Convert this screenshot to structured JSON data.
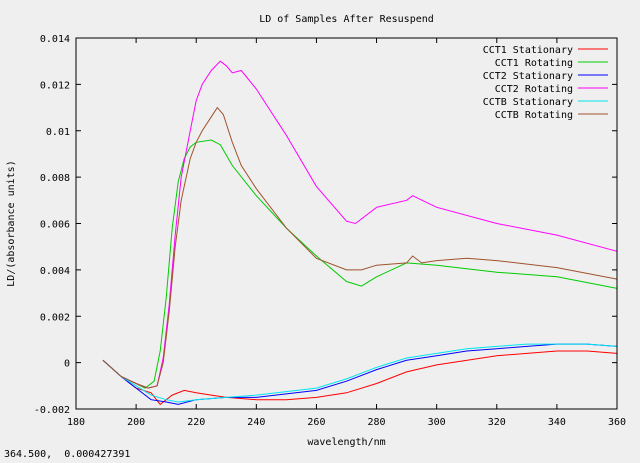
{
  "status_text": "364.500,  0.000427391",
  "chart_data": {
    "type": "line",
    "title": "LD of Samples After Resuspend",
    "xlabel": "wavelength/nm",
    "ylabel": "LD/(absorbance units)",
    "xlim": [
      180,
      360
    ],
    "ylim": [
      -0.002,
      0.014
    ],
    "xticks": [
      180,
      200,
      220,
      240,
      260,
      280,
      300,
      320,
      340,
      360
    ],
    "xtick_labels": [
      "180",
      "200",
      "220",
      "240",
      "260",
      "280",
      "300",
      "320",
      "340",
      "360"
    ],
    "yticks": [
      -0.002,
      0,
      0.002,
      0.004,
      0.006,
      0.008,
      0.01,
      0.012,
      0.014
    ],
    "ytick_labels": [
      "-0.002",
      "0",
      "0.002",
      "0.004",
      "0.006",
      "0.008",
      "0.01",
      "0.012",
      "0.014"
    ],
    "legend_position": "top-right",
    "series": [
      {
        "name": "CCT1 Stationary",
        "color": "#ff0000",
        "x": [
          189,
          195,
          200,
          205,
          208,
          212,
          216,
          220,
          225,
          230,
          240,
          250,
          260,
          270,
          280,
          290,
          300,
          320,
          340,
          350,
          360
        ],
        "y": [
          0.0001,
          -0.0006,
          -0.0011,
          -0.0013,
          -0.0018,
          -0.0014,
          -0.0012,
          -0.0013,
          -0.0014,
          -0.0015,
          -0.0016,
          -0.0016,
          -0.0015,
          -0.0013,
          -0.0009,
          -0.0004,
          -0.0001,
          0.0003,
          0.0005,
          0.0005,
          0.0004
        ]
      },
      {
        "name": "CCT1 Rotating",
        "color": "#00cc00",
        "x": [
          189,
          195,
          200,
          203,
          206,
          208,
          210,
          212,
          214,
          216,
          218,
          220,
          225,
          228,
          232,
          240,
          250,
          260,
          270,
          275,
          280,
          290,
          300,
          320,
          340,
          360
        ],
        "y": [
          0.0001,
          -0.0006,
          -0.0009,
          -0.0011,
          -0.0008,
          0.0005,
          0.0028,
          0.0058,
          0.0078,
          0.0088,
          0.0093,
          0.0095,
          0.0096,
          0.0094,
          0.0085,
          0.0072,
          0.0058,
          0.0046,
          0.0035,
          0.0033,
          0.0037,
          0.0043,
          0.0042,
          0.0039,
          0.0037,
          0.0032
        ]
      },
      {
        "name": "CCT2 Stationary",
        "color": "#0000ff",
        "x": [
          189,
          195,
          200,
          205,
          210,
          214,
          220,
          230,
          240,
          260,
          270,
          280,
          290,
          300,
          310,
          320,
          330,
          340,
          350,
          360
        ],
        "y": [
          0.0001,
          -0.0006,
          -0.0011,
          -0.0016,
          -0.0017,
          -0.0018,
          -0.0016,
          -0.0015,
          -0.0015,
          -0.0012,
          -0.0008,
          -0.0003,
          0.0001,
          0.0003,
          0.0005,
          0.0006,
          0.0007,
          0.0008,
          0.0008,
          0.0007
        ]
      },
      {
        "name": "CCT2 Rotating",
        "color": "#ff00ff",
        "x": [
          189,
          195,
          200,
          204,
          207,
          209,
          211,
          213,
          215,
          218,
          220,
          222,
          225,
          228,
          230,
          232,
          235,
          240,
          250,
          260,
          270,
          273,
          280,
          290,
          292,
          300,
          320,
          340,
          360
        ],
        "y": [
          0.0001,
          -0.0006,
          -0.0009,
          -0.0011,
          -0.001,
          0.0002,
          0.0025,
          0.0055,
          0.008,
          0.01,
          0.0113,
          0.012,
          0.0126,
          0.013,
          0.0128,
          0.0125,
          0.0126,
          0.0118,
          0.0098,
          0.0076,
          0.0061,
          0.006,
          0.0067,
          0.007,
          0.0072,
          0.0067,
          0.006,
          0.0055,
          0.0048
        ]
      },
      {
        "name": "CCTB Stationary",
        "color": "#00e5ee",
        "x": [
          189,
          195,
          200,
          205,
          210,
          214,
          220,
          230,
          240,
          260,
          270,
          280,
          290,
          300,
          310,
          320,
          330,
          340,
          350,
          360
        ],
        "y": [
          0.0001,
          -0.0006,
          -0.001,
          -0.0014,
          -0.0016,
          -0.0017,
          -0.0016,
          -0.0015,
          -0.0014,
          -0.0011,
          -0.0007,
          -0.0002,
          0.0002,
          0.0004,
          0.0006,
          0.0007,
          0.0008,
          0.0008,
          0.0008,
          0.0007
        ]
      },
      {
        "name": "CCTB Rotating",
        "color": "#a0522d",
        "x": [
          189,
          195,
          200,
          204,
          207,
          209,
          211,
          213,
          215,
          218,
          220,
          222,
          225,
          227,
          229,
          232,
          235,
          240,
          250,
          260,
          270,
          275,
          280,
          290,
          292,
          295,
          300,
          310,
          320,
          340,
          360
        ],
        "y": [
          0.0001,
          -0.0006,
          -0.0009,
          -0.0011,
          -0.001,
          0.0,
          0.0022,
          0.005,
          0.007,
          0.0088,
          0.0095,
          0.01,
          0.0106,
          0.011,
          0.0107,
          0.0095,
          0.0085,
          0.0075,
          0.0058,
          0.0045,
          0.004,
          0.004,
          0.0042,
          0.0043,
          0.0046,
          0.0043,
          0.0044,
          0.0045,
          0.0044,
          0.0041,
          0.0036
        ]
      }
    ]
  }
}
